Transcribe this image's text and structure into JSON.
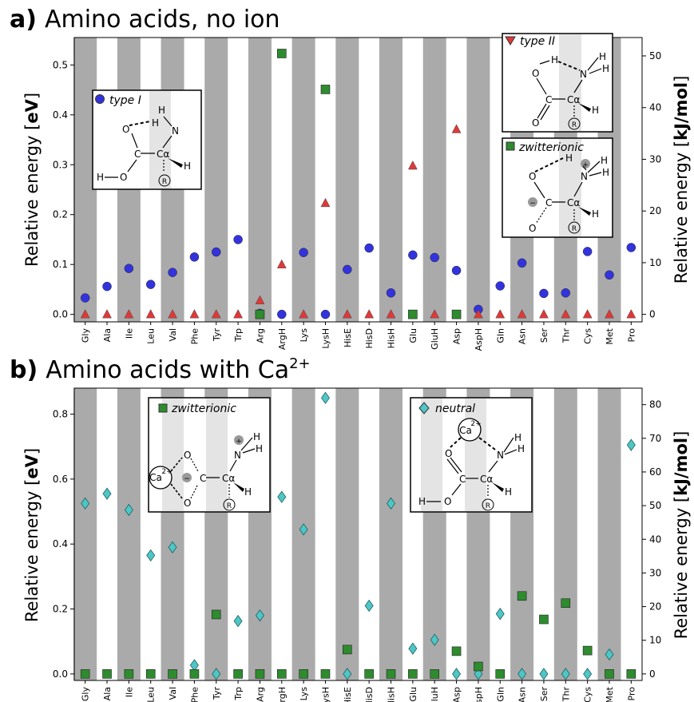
{
  "panels": {
    "a": {
      "letter": "a)",
      "title_pre": "Amino acids, no ion",
      "title_sup": ""
    },
    "b": {
      "letter": "b)",
      "title_pre": "Amino acids with Ca",
      "title_sup": "2+"
    }
  },
  "axis": {
    "left_label_pre": "Relative energy [",
    "left_label_unit": "eV",
    "left_label_post": "]",
    "right_label_pre": "Relative energy [",
    "right_label_unit": "kJ/mol",
    "right_label_post": "]"
  },
  "legends": {
    "a_type1": "type I",
    "a_type2": "type II",
    "a_zwit": "zwitterionic",
    "b_zwit": "zwitterionic",
    "b_neutral": "neutral"
  },
  "chem": {
    "H": "H",
    "N": "N",
    "O": "O",
    "C": "C",
    "Ca_alpha": "Cα",
    "R": "R",
    "plus": "+",
    "minus": "−",
    "ion": "Ca",
    "ion_charge": "2+"
  },
  "colors": {
    "type1": "#3333dd",
    "type2": "#e03838",
    "zwitterionic": "#2e8b2e",
    "neutral": "#4fc6c6",
    "band_dark": "#aaaaaa",
    "band_light": "#e8e8e8"
  },
  "chart_data": [
    {
      "type": "scatter",
      "panel": "a",
      "categories": [
        "Gly",
        "Ala",
        "Ile",
        "Leu",
        "Val",
        "Phe",
        "Tyr",
        "Trp",
        "Arg",
        "ArgH",
        "Lys",
        "LysH",
        "HisE",
        "HisD",
        "HisH",
        "Glu",
        "GluH",
        "Asp",
        "AspH",
        "Gln",
        "Asn",
        "Ser",
        "Thr",
        "Cys",
        "Met",
        "Pro"
      ],
      "ylim": [
        -0.015,
        0.555
      ],
      "yticks": [
        0.0,
        0.1,
        0.2,
        0.3,
        0.4,
        0.5
      ],
      "yticklabels": [
        "0.0",
        "0.1",
        "0.2",
        "0.3",
        "0.4",
        "0.5"
      ],
      "y2lim": [
        -1.447,
        53.55
      ],
      "y2ticks": [
        0,
        10,
        20,
        30,
        40,
        50
      ],
      "y2ticklabels": [
        "0",
        "10",
        "20",
        "30",
        "40",
        "50"
      ],
      "series": [
        {
          "key": "type1",
          "name": "type I",
          "marker": "circle",
          "values": [
            0.033,
            0.056,
            0.092,
            0.06,
            0.084,
            0.115,
            0.125,
            0.15,
            0.002,
            0.0,
            0.124,
            0.0,
            0.09,
            0.133,
            0.043,
            0.119,
            0.114,
            0.088,
            0.01,
            0.057,
            0.103,
            0.042,
            0.043,
            0.126,
            0.079,
            0.134
          ]
        },
        {
          "key": "type2",
          "name": "type II",
          "marker": "triangle",
          "values": [
            0,
            0,
            0,
            0,
            0,
            0,
            0,
            0,
            0.028,
            0.1,
            0,
            0.223,
            0,
            0,
            0,
            0.298,
            0,
            0.371,
            0,
            0,
            0,
            0,
            0,
            0,
            0,
            0
          ]
        },
        {
          "key": "zwitterionic",
          "name": "zwitterionic",
          "marker": "square",
          "values": [
            null,
            null,
            null,
            null,
            null,
            null,
            null,
            null,
            0.0,
            0.523,
            null,
            0.451,
            null,
            null,
            null,
            0.0,
            null,
            0.0,
            null,
            null,
            null,
            null,
            null,
            null,
            null,
            null
          ]
        }
      ]
    },
    {
      "type": "scatter",
      "panel": "b",
      "categories": [
        "Gly",
        "Ala",
        "Ile",
        "Leu",
        "Val",
        "Phe",
        "Tyr",
        "Trp",
        "Arg",
        "ArgH",
        "Lys",
        "LysH",
        "HisE",
        "HisD",
        "HisH",
        "Glu",
        "GluH",
        "Asp",
        "AspH",
        "Gln",
        "Asn",
        "Ser",
        "Thr",
        "Cys",
        "Met",
        "Pro"
      ],
      "ylim": [
        -0.02,
        0.88
      ],
      "yticks": [
        0.0,
        0.2,
        0.4,
        0.6,
        0.8
      ],
      "yticklabels": [
        "0.0",
        "0.2",
        "0.4",
        "0.6",
        "0.8"
      ],
      "y2lim": [
        -1.93,
        84.9
      ],
      "y2ticks": [
        0,
        10,
        20,
        30,
        40,
        50,
        60,
        70,
        80
      ],
      "y2ticklabels": [
        "0",
        "10",
        "20",
        "30",
        "40",
        "50",
        "60",
        "70",
        "80"
      ],
      "series": [
        {
          "key": "neutral",
          "name": "neutral",
          "marker": "diamond",
          "values": [
            0.525,
            0.555,
            0.505,
            0.365,
            0.39,
            0.027,
            0.0,
            0.163,
            0.18,
            0.545,
            0.445,
            0.85,
            0.0,
            0.21,
            0.525,
            0.078,
            0.105,
            0.0,
            0.0,
            0.185,
            0.0,
            0.0,
            0.0,
            0.0,
            0.06,
            0.705
          ]
        },
        {
          "key": "zwitterionic",
          "name": "zwitterionic",
          "marker": "square",
          "values": [
            0,
            0,
            0,
            0,
            0,
            0,
            0.183,
            0,
            0,
            0,
            0,
            0,
            0.075,
            0,
            0,
            0,
            0,
            0.07,
            0.023,
            0,
            0.24,
            0.168,
            0.218,
            0.072,
            0,
            0
          ]
        }
      ]
    }
  ]
}
